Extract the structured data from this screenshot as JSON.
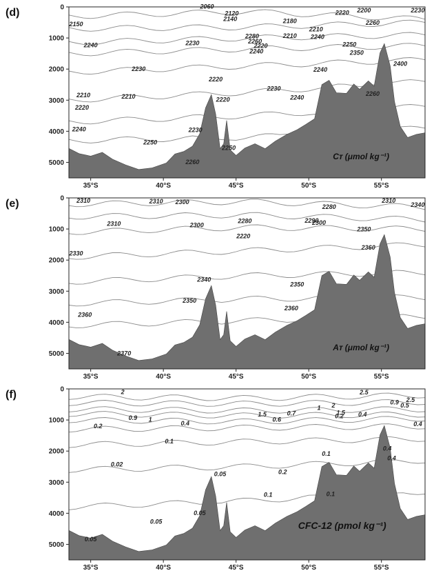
{
  "chart_data": [
    {
      "type": "contour",
      "panel_label": "(d)",
      "variable_label": "Cᴛ (μmol kg⁻¹)",
      "x_ticks": [
        "35°S",
        "40°S",
        "45°S",
        "50°S",
        "55°S"
      ],
      "y_ticks": [
        "0",
        "1000",
        "2000",
        "3000",
        "4000",
        "5000"
      ],
      "xlim": [
        33.5,
        58
      ],
      "ylim": [
        0,
        5500
      ],
      "contour_labels": [
        {
          "text": "2060",
          "lat": 43,
          "depth": 50
        },
        {
          "text": "2120",
          "lat": 44.7,
          "depth": 280
        },
        {
          "text": "2140",
          "lat": 44.6,
          "depth": 450
        },
        {
          "text": "2150",
          "lat": 34,
          "depth": 620
        },
        {
          "text": "2180",
          "lat": 48.7,
          "depth": 520
        },
        {
          "text": "2200",
          "lat": 53.8,
          "depth": 180
        },
        {
          "text": "2230",
          "lat": 57.5,
          "depth": 180
        },
        {
          "text": "2220",
          "lat": 52.3,
          "depth": 250
        },
        {
          "text": "2260",
          "lat": 54.4,
          "depth": 580
        },
        {
          "text": "2210",
          "lat": 50.5,
          "depth": 790
        },
        {
          "text": "2240",
          "lat": 50.6,
          "depth": 1030
        },
        {
          "text": "2250",
          "lat": 52.8,
          "depth": 1280
        },
        {
          "text": "2350",
          "lat": 53.3,
          "depth": 1540
        },
        {
          "text": "2280",
          "lat": 46.1,
          "depth": 1010
        },
        {
          "text": "2260",
          "lat": 46.3,
          "depth": 1180
        },
        {
          "text": "2210",
          "lat": 48.7,
          "depth": 1000
        },
        {
          "text": "2220",
          "lat": 46.7,
          "depth": 1320
        },
        {
          "text": "2240",
          "lat": 46.4,
          "depth": 1500
        },
        {
          "text": "2240",
          "lat": 35,
          "depth": 1300
        },
        {
          "text": "2230",
          "lat": 42,
          "depth": 1230
        },
        {
          "text": "2230",
          "lat": 38.3,
          "depth": 2060
        },
        {
          "text": "2240",
          "lat": 50.8,
          "depth": 2080
        },
        {
          "text": "2220",
          "lat": 43.6,
          "depth": 2400
        },
        {
          "text": "2230",
          "lat": 47.6,
          "depth": 2700
        },
        {
          "text": "2240",
          "lat": 49.2,
          "depth": 2980
        },
        {
          "text": "2210",
          "lat": 34.5,
          "depth": 2900
        },
        {
          "text": "2210",
          "lat": 37.6,
          "depth": 2950
        },
        {
          "text": "2220",
          "lat": 44.1,
          "depth": 3050
        },
        {
          "text": "2220",
          "lat": 34.4,
          "depth": 3300
        },
        {
          "text": "2230",
          "lat": 42.2,
          "depth": 4020
        },
        {
          "text": "2240",
          "lat": 34.2,
          "depth": 4000
        },
        {
          "text": "2250",
          "lat": 39.1,
          "depth": 4420
        },
        {
          "text": "2250",
          "lat": 44.5,
          "depth": 4600
        },
        {
          "text": "2260",
          "lat": 42,
          "depth": 5060
        },
        {
          "text": "2260",
          "lat": 54.4,
          "depth": 2860
        },
        {
          "text": "2400",
          "lat": 56.3,
          "depth": 1900
        }
      ]
    },
    {
      "type": "contour",
      "panel_label": "(e)",
      "variable_label": "Aᴛ (μmol kg⁻¹)",
      "x_ticks": [
        "35°S",
        "40°S",
        "45°S",
        "50°S",
        "55°S"
      ],
      "y_ticks": [
        "0",
        "1000",
        "2000",
        "3000",
        "4000",
        "5000"
      ],
      "xlim": [
        33.5,
        58
      ],
      "ylim": [
        0,
        5500
      ],
      "contour_labels": [
        {
          "text": "2310",
          "lat": 34.5,
          "depth": 150
        },
        {
          "text": "2310",
          "lat": 39.5,
          "depth": 180
        },
        {
          "text": "2300",
          "lat": 41.3,
          "depth": 200
        },
        {
          "text": "2280",
          "lat": 51.4,
          "depth": 360
        },
        {
          "text": "2310",
          "lat": 55.5,
          "depth": 150
        },
        {
          "text": "2340",
          "lat": 57.5,
          "depth": 290
        },
        {
          "text": "2310",
          "lat": 36.6,
          "depth": 900
        },
        {
          "text": "2300",
          "lat": 42.3,
          "depth": 940
        },
        {
          "text": "2280",
          "lat": 45.6,
          "depth": 810
        },
        {
          "text": "2290",
          "lat": 50.2,
          "depth": 800
        },
        {
          "text": "2300",
          "lat": 50.7,
          "depth": 870
        },
        {
          "text": "2220",
          "lat": 45.5,
          "depth": 1300
        },
        {
          "text": "2350",
          "lat": 53.8,
          "depth": 1080
        },
        {
          "text": "2360",
          "lat": 54.1,
          "depth": 1660
        },
        {
          "text": "2330",
          "lat": 34,
          "depth": 1850
        },
        {
          "text": "2340",
          "lat": 42.8,
          "depth": 2700
        },
        {
          "text": "2350",
          "lat": 49.2,
          "depth": 2850
        },
        {
          "text": "2350",
          "lat": 41.8,
          "depth": 3370
        },
        {
          "text": "2360",
          "lat": 48.8,
          "depth": 3610
        },
        {
          "text": "2360",
          "lat": 34.6,
          "depth": 3830
        },
        {
          "text": "2370",
          "lat": 37.3,
          "depth": 5070
        }
      ]
    },
    {
      "type": "contour",
      "panel_label": "(f)",
      "variable_label": "CFC-12 (pmol kg⁻¹)",
      "x_ticks": [
        "35°S",
        "40°S",
        "45°S",
        "50°S",
        "55°S"
      ],
      "y_ticks": [
        "0",
        "1000",
        "2000",
        "3000",
        "4000",
        "5000"
      ],
      "xlim": [
        33.5,
        58
      ],
      "ylim": [
        0,
        5500
      ],
      "contour_labels": [
        {
          "text": "2",
          "lat": 37.2,
          "depth": 170
        },
        {
          "text": "2.5",
          "lat": 53.8,
          "depth": 180
        },
        {
          "text": "2",
          "lat": 51.7,
          "depth": 600
        },
        {
          "text": "1.5",
          "lat": 52.2,
          "depth": 830
        },
        {
          "text": "1",
          "lat": 50.7,
          "depth": 680
        },
        {
          "text": "0.9",
          "lat": 37.9,
          "depth": 1000
        },
        {
          "text": "1",
          "lat": 39.1,
          "depth": 1050
        },
        {
          "text": "1.5",
          "lat": 46.8,
          "depth": 890
        },
        {
          "text": "0.7",
          "lat": 48.8,
          "depth": 850
        },
        {
          "text": "0.6",
          "lat": 47.8,
          "depth": 1050
        },
        {
          "text": "0.4",
          "lat": 41.5,
          "depth": 1180
        },
        {
          "text": "0.4",
          "lat": 53.7,
          "depth": 890
        },
        {
          "text": "0.2",
          "lat": 52.1,
          "depth": 940
        },
        {
          "text": "0.2",
          "lat": 35.5,
          "depth": 1260
        },
        {
          "text": "0.1",
          "lat": 40.4,
          "depth": 1750
        },
        {
          "text": "0.1",
          "lat": 51.2,
          "depth": 2150
        },
        {
          "text": "0.02",
          "lat": 36.8,
          "depth": 2500
        },
        {
          "text": "0.2",
          "lat": 48.2,
          "depth": 2740
        },
        {
          "text": "0.05",
          "lat": 43.9,
          "depth": 2800
        },
        {
          "text": "0.1",
          "lat": 47.2,
          "depth": 3470
        },
        {
          "text": "0.05",
          "lat": 39.5,
          "depth": 4340
        },
        {
          "text": "0.05",
          "lat": 42.5,
          "depth": 4060
        },
        {
          "text": "0.05",
          "lat": 35,
          "depth": 4900
        },
        {
          "text": "0.1",
          "lat": 51.5,
          "depth": 3450
        },
        {
          "text": "0.4",
          "lat": 55.4,
          "depth": 1980
        },
        {
          "text": "0.4",
          "lat": 57.5,
          "depth": 1200
        },
        {
          "text": "0.4",
          "lat": 55.7,
          "depth": 2300
        },
        {
          "text": "0.9",
          "lat": 55.9,
          "depth": 500
        },
        {
          "text": "0.5",
          "lat": 56.6,
          "depth": 600
        },
        {
          "text": "2.5",
          "lat": 57,
          "depth": 420
        }
      ]
    }
  ],
  "colors": {
    "topography": "#6f6f6f",
    "contour": "#8a8a8a",
    "axis": "#222222"
  }
}
